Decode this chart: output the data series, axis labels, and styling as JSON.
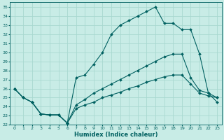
{
  "xlabel": "Humidex (Indice chaleur)",
  "bg_color": "#c8ece6",
  "grid_color": "#a8d8d0",
  "line_color": "#006060",
  "xlim": [
    -0.5,
    23.5
  ],
  "ylim": [
    22,
    35.5
  ],
  "xticks": [
    0,
    1,
    2,
    3,
    4,
    5,
    6,
    7,
    8,
    9,
    10,
    11,
    12,
    13,
    14,
    15,
    16,
    17,
    18,
    19,
    20,
    21,
    22,
    23
  ],
  "yticks": [
    22,
    23,
    24,
    25,
    26,
    27,
    28,
    29,
    30,
    31,
    32,
    33,
    34,
    35
  ],
  "series1_x": [
    0,
    1,
    2,
    3,
    4,
    5,
    6,
    7,
    8,
    9,
    10,
    11,
    12,
    13,
    14,
    15,
    16,
    17,
    18,
    19,
    20,
    21,
    22,
    23
  ],
  "series1_y": [
    26.0,
    25.0,
    24.5,
    23.2,
    23.1,
    23.1,
    22.2,
    27.2,
    27.5,
    28.7,
    30.0,
    32.0,
    33.0,
    33.5,
    34.0,
    34.5,
    35.0,
    33.2,
    33.2,
    32.5,
    32.5,
    29.8,
    25.5,
    24.5
  ],
  "series2_x": [
    0,
    1,
    2,
    3,
    4,
    5,
    6,
    7,
    8,
    9,
    10,
    11,
    12,
    13,
    14,
    15,
    16,
    17,
    18,
    19,
    20,
    21,
    22,
    23
  ],
  "series2_y": [
    26.0,
    25.0,
    24.5,
    23.2,
    23.1,
    23.1,
    22.2,
    24.2,
    24.8,
    25.5,
    26.0,
    26.5,
    27.0,
    27.5,
    28.0,
    28.5,
    29.0,
    29.5,
    29.8,
    29.8,
    27.2,
    25.8,
    25.5,
    25.0
  ],
  "series3_x": [
    0,
    1,
    2,
    3,
    4,
    5,
    6,
    7,
    8,
    9,
    10,
    11,
    12,
    13,
    14,
    15,
    16,
    17,
    18,
    19,
    20,
    21,
    22,
    23
  ],
  "series3_y": [
    26.0,
    25.0,
    24.5,
    23.2,
    23.1,
    23.1,
    22.2,
    23.8,
    24.2,
    24.5,
    25.0,
    25.3,
    25.6,
    26.0,
    26.3,
    26.7,
    27.0,
    27.3,
    27.5,
    27.5,
    26.5,
    25.5,
    25.2,
    25.0
  ]
}
